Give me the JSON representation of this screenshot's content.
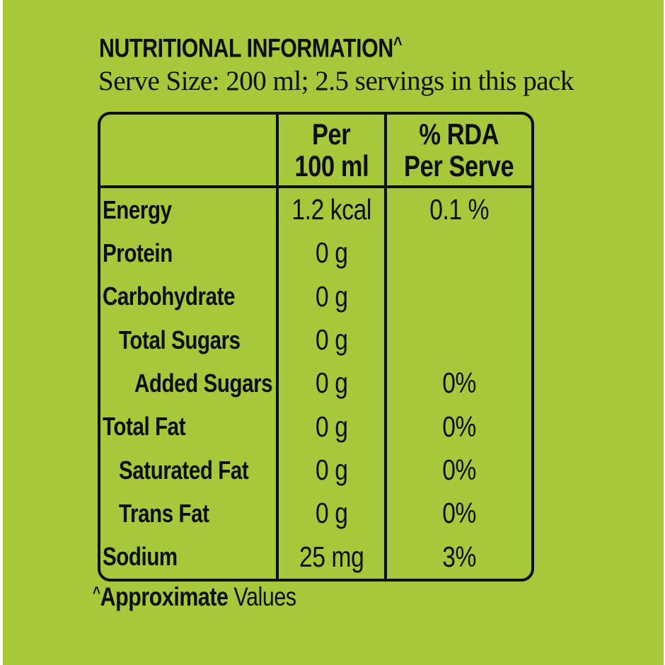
{
  "pack": {
    "background_color": "#a5c93a",
    "ink_color": "#0e0e0c"
  },
  "title": {
    "text": "NUTRITIONAL INFORMATION",
    "superscript_marker": "^"
  },
  "subtitle": "Serve Size: 200 ml; 2.5 servings in this pack",
  "table": {
    "headers": {
      "label_col": "",
      "per_line1": "Per",
      "per_line2": "100 ml",
      "rda_line1": "% RDA",
      "rda_line2": "Per Serve"
    },
    "rows": [
      {
        "label": "Energy",
        "indent": 0,
        "per_100ml": "1.2 kcal",
        "rda_per_serve": "0.1 %"
      },
      {
        "label": "Protein",
        "indent": 0,
        "per_100ml": "0 g",
        "rda_per_serve": ""
      },
      {
        "label": "Carbohydrate",
        "indent": 0,
        "per_100ml": "0 g",
        "rda_per_serve": ""
      },
      {
        "label": "Total Sugars",
        "indent": 1,
        "per_100ml": "0 g",
        "rda_per_serve": ""
      },
      {
        "label": "Added Sugars",
        "indent": 2,
        "per_100ml": "0 g",
        "rda_per_serve": "0%"
      },
      {
        "label": "Total Fat",
        "indent": 0,
        "per_100ml": "0 g",
        "rda_per_serve": "0%"
      },
      {
        "label": "Saturated Fat",
        "indent": 1,
        "per_100ml": "0 g",
        "rda_per_serve": "0%"
      },
      {
        "label": "Trans Fat",
        "indent": 1,
        "per_100ml": "0 g",
        "rda_per_serve": "0%"
      },
      {
        "label": "Sodium",
        "indent": 0,
        "per_100ml": "25 mg",
        "rda_per_serve": "3%"
      }
    ]
  },
  "footnote": {
    "marker": "^",
    "bold_text": "Approximate",
    "regular_text": " Values"
  }
}
